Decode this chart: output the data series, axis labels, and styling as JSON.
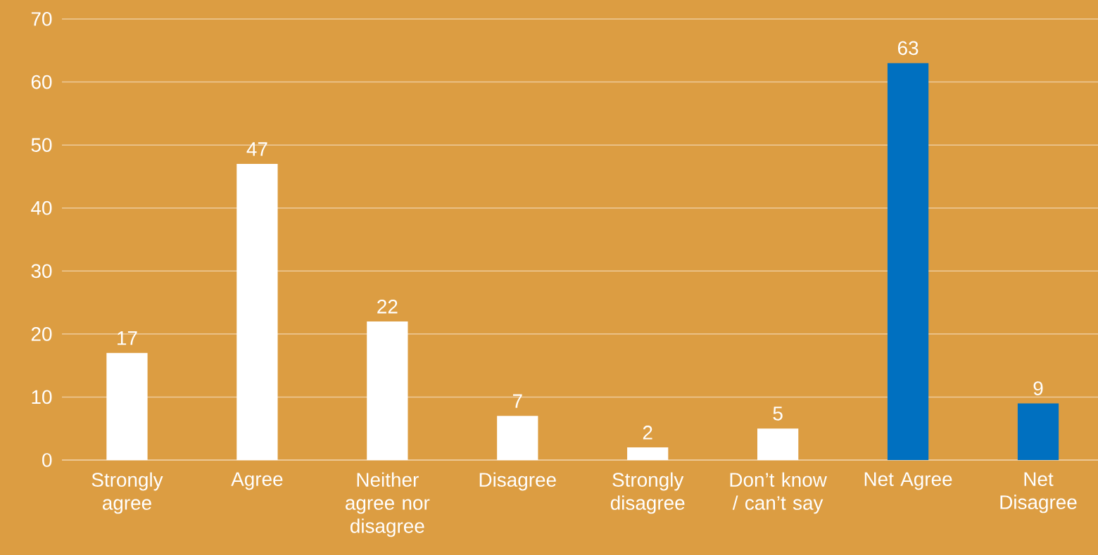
{
  "chart_data": {
    "type": "bar",
    "categories": [
      "Strongly agree",
      "Agree",
      "Neither agree nor disagree",
      "Disagree",
      "Strongly disagree",
      "Don’t know / can’t say",
      "Net Agree",
      "Net Disagree"
    ],
    "values": [
      17,
      47,
      22,
      7,
      2,
      5,
      63,
      9
    ],
    "colors": [
      "#ffffff",
      "#ffffff",
      "#ffffff",
      "#ffffff",
      "#ffffff",
      "#ffffff",
      "#0070c0",
      "#0070c0"
    ],
    "ylim": [
      0,
      70
    ],
    "yticks": [
      0,
      10,
      20,
      30,
      40,
      50,
      60,
      70
    ],
    "grid": "y",
    "data_labels": true
  }
}
